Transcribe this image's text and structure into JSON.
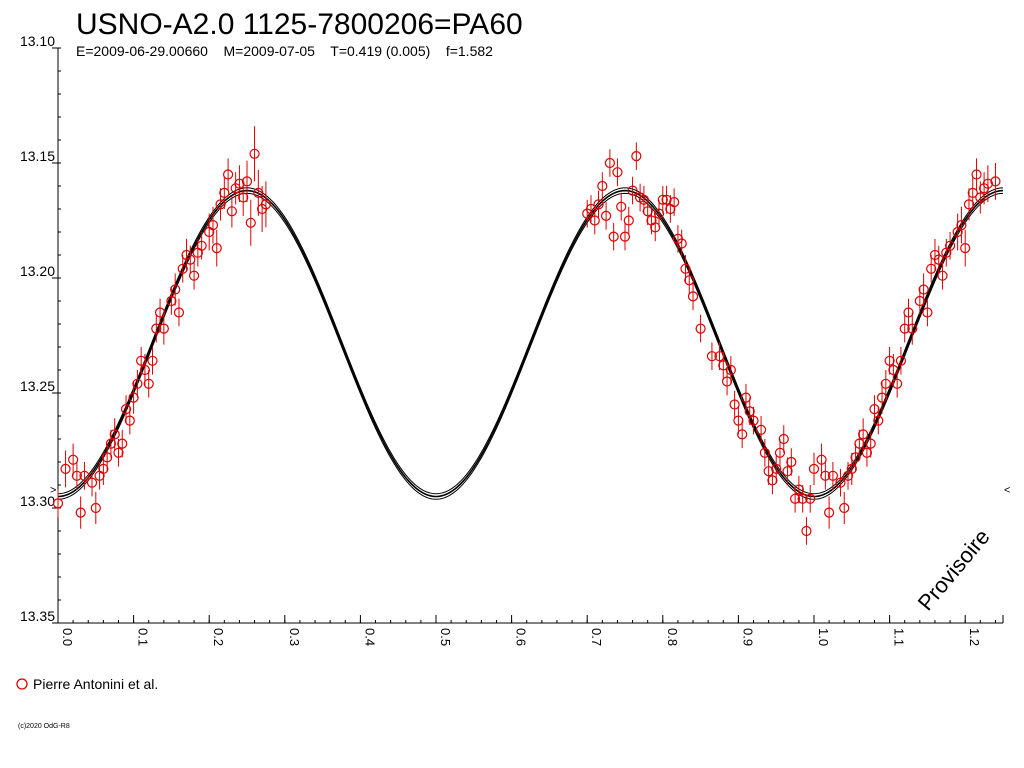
{
  "header": {
    "title": "USNO-A2.0 1125-7800206=PA60",
    "info": "E=2009-06-29.00660    M=2009-07-05    T=0.419 (0.005)    f=1.582"
  },
  "watermark": "Provisoire",
  "credit": "(c)2020 OdG-R8",
  "colors": {
    "points": "#dd0000",
    "model": "#000000",
    "axis": "#000000",
    "background": "#ffffff"
  },
  "chart_data": {
    "type": "scatter",
    "title": "USNO-A2.0 1125-7800206=PA60",
    "xlabel": "",
    "ylabel": "",
    "xlim": [
      0.0,
      1.25
    ],
    "ylim": [
      13.35,
      13.1
    ],
    "y_inverted": true,
    "x_ticks": [
      "0.0",
      "0.1",
      "0.2",
      "0.3",
      "0.4",
      "0.5",
      "0.6",
      "0.7",
      "0.8",
      "0.9",
      "1.0",
      "1.1",
      "1.2"
    ],
    "y_ticks": [
      "13.10",
      "13.15",
      "13.20",
      "13.25",
      "13.30",
      "13.35"
    ],
    "legend": {
      "placement": "bottom-left",
      "entries": [
        "Pierre Antonini et al."
      ]
    },
    "grid": false,
    "series": [
      {
        "name": "Pierre Antonini et al.",
        "marker": "circle",
        "errorbars": true,
        "points": [
          [
            0.0,
            13.298,
            0.006
          ],
          [
            0.01,
            13.283,
            0.008
          ],
          [
            0.02,
            13.279,
            0.007
          ],
          [
            0.025,
            13.286,
            0.006
          ],
          [
            0.03,
            13.302,
            0.007
          ],
          [
            0.035,
            13.286,
            0.006
          ],
          [
            0.045,
            13.289,
            0.006
          ],
          [
            0.05,
            13.3,
            0.007
          ],
          [
            0.055,
            13.286,
            0.006
          ],
          [
            0.06,
            13.283,
            0.007
          ],
          [
            0.065,
            13.278,
            0.006
          ],
          [
            0.07,
            13.272,
            0.006
          ],
          [
            0.075,
            13.268,
            0.007
          ],
          [
            0.08,
            13.276,
            0.006
          ],
          [
            0.085,
            13.272,
            0.006
          ],
          [
            0.09,
            13.257,
            0.006
          ],
          [
            0.095,
            13.262,
            0.006
          ],
          [
            0.1,
            13.252,
            0.007
          ],
          [
            0.105,
            13.246,
            0.006
          ],
          [
            0.11,
            13.236,
            0.006
          ],
          [
            0.115,
            13.24,
            0.007
          ],
          [
            0.12,
            13.246,
            0.006
          ],
          [
            0.125,
            13.236,
            0.006
          ],
          [
            0.13,
            13.222,
            0.006
          ],
          [
            0.135,
            13.215,
            0.006
          ],
          [
            0.14,
            13.222,
            0.007
          ],
          [
            0.15,
            13.21,
            0.006
          ],
          [
            0.155,
            13.205,
            0.007
          ],
          [
            0.16,
            13.215,
            0.006
          ],
          [
            0.165,
            13.196,
            0.006
          ],
          [
            0.17,
            13.19,
            0.007
          ],
          [
            0.175,
            13.192,
            0.006
          ],
          [
            0.18,
            13.199,
            0.006
          ],
          [
            0.185,
            13.189,
            0.006
          ],
          [
            0.19,
            13.186,
            0.006
          ],
          [
            0.2,
            13.18,
            0.008
          ],
          [
            0.205,
            13.177,
            0.008
          ],
          [
            0.21,
            13.187,
            0.008
          ],
          [
            0.215,
            13.168,
            0.007
          ],
          [
            0.22,
            13.163,
            0.007
          ],
          [
            0.225,
            13.155,
            0.007
          ],
          [
            0.23,
            13.171,
            0.007
          ],
          [
            0.235,
            13.161,
            0.007
          ],
          [
            0.24,
            13.159,
            0.008
          ],
          [
            0.245,
            13.165,
            0.008
          ],
          [
            0.25,
            13.158,
            0.009
          ],
          [
            0.255,
            13.176,
            0.01
          ],
          [
            0.26,
            13.146,
            0.012
          ],
          [
            0.265,
            13.163,
            0.01
          ],
          [
            0.27,
            13.17,
            0.01
          ],
          [
            0.275,
            13.168,
            0.01
          ],
          [
            0.7,
            13.172,
            0.006
          ],
          [
            0.705,
            13.17,
            0.006
          ],
          [
            0.71,
            13.175,
            0.006
          ],
          [
            0.715,
            13.168,
            0.006
          ],
          [
            0.72,
            13.16,
            0.006
          ],
          [
            0.725,
            13.173,
            0.006
          ],
          [
            0.73,
            13.15,
            0.006
          ],
          [
            0.735,
            13.182,
            0.006
          ],
          [
            0.74,
            13.154,
            0.006
          ],
          [
            0.745,
            13.169,
            0.006
          ],
          [
            0.75,
            13.182,
            0.006
          ],
          [
            0.755,
            13.175,
            0.006
          ],
          [
            0.76,
            13.162,
            0.006
          ],
          [
            0.765,
            13.147,
            0.006
          ],
          [
            0.77,
            13.165,
            0.006
          ],
          [
            0.775,
            13.166,
            0.006
          ],
          [
            0.78,
            13.171,
            0.006
          ],
          [
            0.785,
            13.175,
            0.006
          ],
          [
            0.79,
            13.178,
            0.006
          ],
          [
            0.795,
            13.172,
            0.006
          ],
          [
            0.8,
            13.166,
            0.006
          ],
          [
            0.805,
            13.166,
            0.006
          ],
          [
            0.81,
            13.17,
            0.006
          ],
          [
            0.815,
            13.167,
            0.006
          ],
          [
            0.82,
            13.183,
            0.006
          ],
          [
            0.825,
            13.185,
            0.006
          ],
          [
            0.83,
            13.196,
            0.006
          ],
          [
            0.835,
            13.201,
            0.006
          ],
          [
            0.84,
            13.208,
            0.006
          ],
          [
            0.85,
            13.222,
            0.006
          ],
          [
            0.865,
            13.234,
            0.006
          ],
          [
            0.875,
            13.234,
            0.006
          ],
          [
            0.88,
            13.238,
            0.006
          ],
          [
            0.885,
            13.245,
            0.006
          ],
          [
            0.89,
            13.24,
            0.006
          ],
          [
            0.895,
            13.255,
            0.006
          ],
          [
            0.9,
            13.262,
            0.006
          ],
          [
            0.905,
            13.268,
            0.006
          ],
          [
            0.91,
            13.252,
            0.006
          ],
          [
            0.915,
            13.258,
            0.006
          ],
          [
            0.92,
            13.262,
            0.006
          ],
          [
            0.93,
            13.266,
            0.006
          ],
          [
            0.935,
            13.276,
            0.006
          ],
          [
            0.94,
            13.284,
            0.006
          ],
          [
            0.945,
            13.288,
            0.006
          ],
          [
            0.95,
            13.283,
            0.006
          ],
          [
            0.955,
            13.276,
            0.006
          ],
          [
            0.96,
            13.27,
            0.006
          ],
          [
            0.965,
            13.284,
            0.006
          ],
          [
            0.97,
            13.28,
            0.006
          ],
          [
            0.975,
            13.296,
            0.006
          ],
          [
            0.98,
            13.292,
            0.006
          ],
          [
            0.985,
            13.296,
            0.006
          ],
          [
            0.99,
            13.31,
            0.006
          ],
          [
            0.995,
            13.296,
            0.006
          ],
          [
            1.0,
            13.283,
            0.007
          ],
          [
            1.01,
            13.279,
            0.007
          ],
          [
            1.015,
            13.286,
            0.006
          ],
          [
            1.02,
            13.302,
            0.007
          ],
          [
            1.025,
            13.286,
            0.006
          ],
          [
            1.035,
            13.289,
            0.006
          ],
          [
            1.04,
            13.3,
            0.007
          ],
          [
            1.045,
            13.286,
            0.006
          ],
          [
            1.05,
            13.283,
            0.007
          ],
          [
            1.055,
            13.278,
            0.006
          ],
          [
            1.06,
            13.272,
            0.006
          ],
          [
            1.065,
            13.268,
            0.007
          ],
          [
            1.07,
            13.276,
            0.006
          ],
          [
            1.075,
            13.272,
            0.006
          ],
          [
            1.08,
            13.257,
            0.006
          ],
          [
            1.085,
            13.262,
            0.006
          ],
          [
            1.09,
            13.252,
            0.007
          ],
          [
            1.095,
            13.246,
            0.006
          ],
          [
            1.1,
            13.236,
            0.006
          ],
          [
            1.105,
            13.24,
            0.007
          ],
          [
            1.11,
            13.246,
            0.006
          ],
          [
            1.115,
            13.236,
            0.006
          ],
          [
            1.12,
            13.222,
            0.006
          ],
          [
            1.125,
            13.215,
            0.006
          ],
          [
            1.13,
            13.222,
            0.007
          ],
          [
            1.14,
            13.21,
            0.006
          ],
          [
            1.145,
            13.205,
            0.007
          ],
          [
            1.15,
            13.215,
            0.006
          ],
          [
            1.155,
            13.196,
            0.006
          ],
          [
            1.16,
            13.19,
            0.007
          ],
          [
            1.165,
            13.192,
            0.006
          ],
          [
            1.17,
            13.199,
            0.006
          ],
          [
            1.175,
            13.189,
            0.006
          ],
          [
            1.18,
            13.186,
            0.006
          ],
          [
            1.19,
            13.18,
            0.008
          ],
          [
            1.195,
            13.177,
            0.008
          ],
          [
            1.2,
            13.187,
            0.008
          ],
          [
            1.205,
            13.168,
            0.007
          ],
          [
            1.21,
            13.163,
            0.007
          ],
          [
            1.215,
            13.155,
            0.007
          ],
          [
            1.22,
            13.165,
            0.007
          ],
          [
            1.225,
            13.161,
            0.007
          ],
          [
            1.23,
            13.159,
            0.008
          ],
          [
            1.24,
            13.158,
            0.008
          ]
        ]
      },
      {
        "name": "",
        "type": "line",
        "model": {
          "mean": 13.2285,
          "amplitude": 0.0665,
          "min_phase": 0.0,
          "harmonic": 2
        }
      }
    ]
  }
}
